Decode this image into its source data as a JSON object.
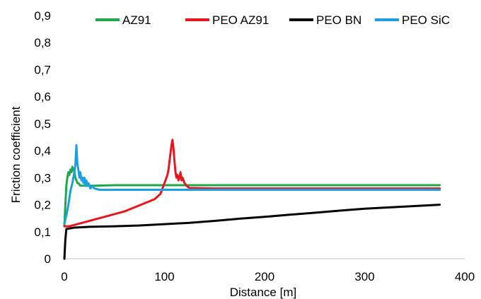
{
  "chart_data": {
    "type": "line",
    "title": "",
    "xlabel": "Distance [m]",
    "ylabel": "Friction coefficient",
    "xlim": [
      0,
      400
    ],
    "ylim": [
      0,
      0.9
    ],
    "x_ticks": [
      "0",
      "100",
      "200",
      "300",
      "400"
    ],
    "y_ticks": [
      "0",
      "0,1",
      "0,2",
      "0,3",
      "0,4",
      "0,5",
      "0,6",
      "0,7",
      "0,8",
      "0,9"
    ],
    "grid": false,
    "legend_position": "top",
    "series": [
      {
        "name": "AZ91",
        "color": "#1fa84a",
        "points": [
          [
            0,
            0.12
          ],
          [
            1,
            0.2
          ],
          [
            2,
            0.27
          ],
          [
            3,
            0.3
          ],
          [
            4,
            0.32
          ],
          [
            5,
            0.31
          ],
          [
            6,
            0.33
          ],
          [
            7,
            0.32
          ],
          [
            8,
            0.34
          ],
          [
            9,
            0.33
          ],
          [
            10,
            0.32
          ],
          [
            11,
            0.3
          ],
          [
            12,
            0.29
          ],
          [
            13,
            0.28
          ],
          [
            14,
            0.28
          ],
          [
            16,
            0.27
          ],
          [
            20,
            0.27
          ],
          [
            25,
            0.27
          ],
          [
            30,
            0.27
          ],
          [
            50,
            0.272
          ],
          [
            100,
            0.272
          ],
          [
            200,
            0.272
          ],
          [
            300,
            0.272
          ],
          [
            375,
            0.272
          ]
        ]
      },
      {
        "name": "PEO AZ91",
        "color": "#e8161c",
        "points": [
          [
            0,
            0.12
          ],
          [
            5,
            0.12
          ],
          [
            10,
            0.125
          ],
          [
            20,
            0.135
          ],
          [
            30,
            0.145
          ],
          [
            40,
            0.155
          ],
          [
            50,
            0.165
          ],
          [
            60,
            0.175
          ],
          [
            70,
            0.19
          ],
          [
            80,
            0.205
          ],
          [
            90,
            0.22
          ],
          [
            93,
            0.23
          ],
          [
            96,
            0.24
          ],
          [
            99,
            0.27
          ],
          [
            101,
            0.29
          ],
          [
            103,
            0.31
          ],
          [
            104,
            0.33
          ],
          [
            105,
            0.36
          ],
          [
            106,
            0.39
          ],
          [
            107,
            0.42
          ],
          [
            108,
            0.44
          ],
          [
            109,
            0.41
          ],
          [
            110,
            0.36
          ],
          [
            111,
            0.32
          ],
          [
            112,
            0.3
          ],
          [
            113,
            0.31
          ],
          [
            114,
            0.29
          ],
          [
            115,
            0.3
          ],
          [
            116,
            0.32
          ],
          [
            117,
            0.29
          ],
          [
            118,
            0.3
          ],
          [
            120,
            0.28
          ],
          [
            122,
            0.27
          ],
          [
            125,
            0.262
          ],
          [
            150,
            0.26
          ],
          [
            200,
            0.26
          ],
          [
            300,
            0.26
          ],
          [
            375,
            0.26
          ]
        ]
      },
      {
        "name": "PEO BN",
        "color": "#000000",
        "points": [
          [
            0,
            0.0
          ],
          [
            1,
            0.07
          ],
          [
            2,
            0.11
          ],
          [
            5,
            0.112
          ],
          [
            10,
            0.115
          ],
          [
            25,
            0.118
          ],
          [
            50,
            0.12
          ],
          [
            75,
            0.123
          ],
          [
            100,
            0.128
          ],
          [
            125,
            0.133
          ],
          [
            150,
            0.14
          ],
          [
            175,
            0.148
          ],
          [
            200,
            0.155
          ],
          [
            225,
            0.163
          ],
          [
            250,
            0.17
          ],
          [
            275,
            0.178
          ],
          [
            300,
            0.185
          ],
          [
            325,
            0.19
          ],
          [
            350,
            0.195
          ],
          [
            375,
            0.2
          ]
        ]
      },
      {
        "name": "PEO SiC",
        "color": "#1aa0e0",
        "points": [
          [
            0,
            0.13
          ],
          [
            2,
            0.16
          ],
          [
            4,
            0.2
          ],
          [
            6,
            0.25
          ],
          [
            8,
            0.28
          ],
          [
            9,
            0.3
          ],
          [
            10,
            0.32
          ],
          [
            11,
            0.35
          ],
          [
            12,
            0.42
          ],
          [
            13,
            0.35
          ],
          [
            14,
            0.33
          ],
          [
            15,
            0.3
          ],
          [
            16,
            0.32
          ],
          [
            17,
            0.29
          ],
          [
            18,
            0.3
          ],
          [
            19,
            0.28
          ],
          [
            20,
            0.3
          ],
          [
            21,
            0.27
          ],
          [
            22,
            0.29
          ],
          [
            23,
            0.27
          ],
          [
            24,
            0.28
          ],
          [
            26,
            0.26
          ],
          [
            28,
            0.27
          ],
          [
            30,
            0.26
          ],
          [
            35,
            0.255
          ],
          [
            50,
            0.255
          ],
          [
            100,
            0.255
          ],
          [
            200,
            0.255
          ],
          [
            300,
            0.255
          ],
          [
            375,
            0.255
          ]
        ]
      }
    ]
  }
}
